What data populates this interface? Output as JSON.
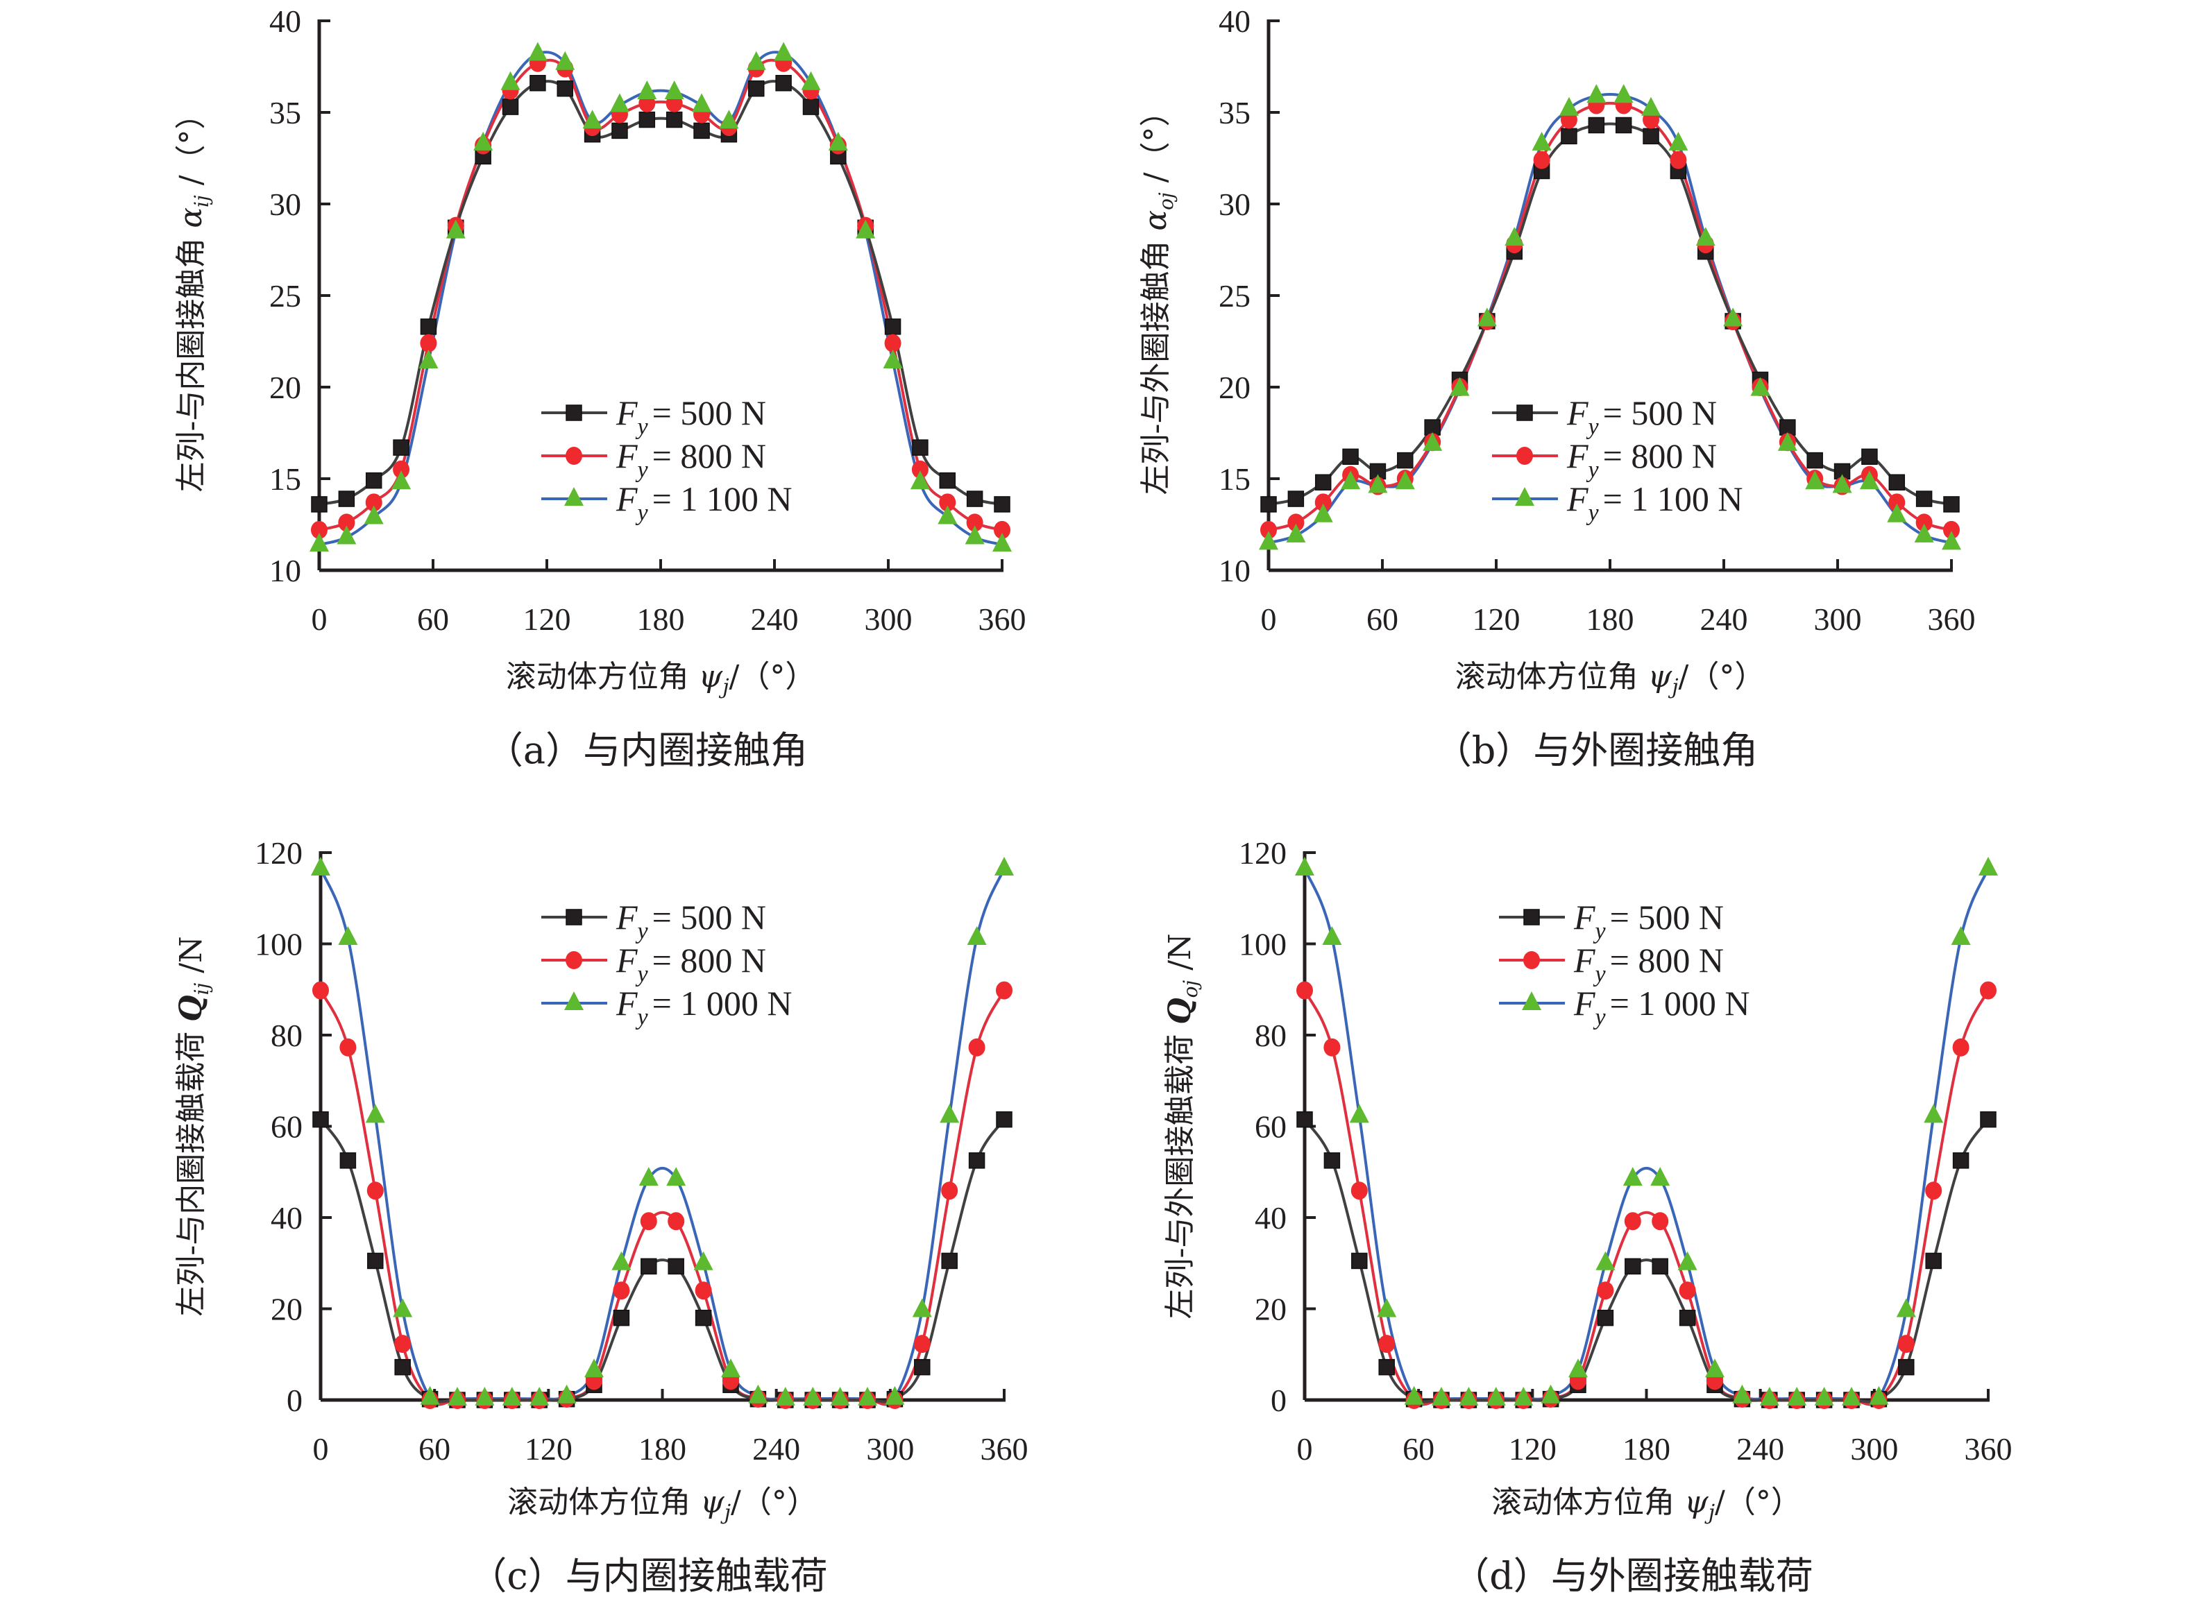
{
  "figure": {
    "panels": [
      "a",
      "b",
      "c",
      "d"
    ]
  },
  "chart_data": [
    {
      "id": "a",
      "type": "line",
      "caption": "（a）与内圈接触角",
      "xlabel_prefix": "滚动体方位角 ",
      "xlabel_symbol": "ψ",
      "xlabel_sub": "j",
      "xlabel_suffix": "/（°）",
      "ylabel_prefix": "左列-与内圈接触角 ",
      "ylabel_symbol": "α",
      "ylabel_sub": "ij",
      "ylabel_suffix": " /（°）",
      "xlim": [
        0,
        360
      ],
      "ylim": [
        10,
        40
      ],
      "xticks": [
        0,
        60,
        120,
        180,
        240,
        300,
        360
      ],
      "yticks": [
        10,
        15,
        20,
        25,
        30,
        35,
        40
      ],
      "grid": false,
      "legend_position": "lower-center",
      "x": [
        0,
        14.4,
        28.8,
        43.2,
        57.6,
        72,
        86.4,
        100.8,
        115.2,
        129.6,
        144,
        158.4,
        172.8,
        187.2,
        201.6,
        216,
        230.4,
        244.8,
        259.2,
        273.6,
        288,
        302.4,
        316.8,
        331.2,
        345.6,
        360
      ],
      "series": [
        {
          "name": "F_y = 500 N",
          "legend_value": "= 500 N",
          "color": "#404040",
          "marker": "square",
          "marker_color": "#231f20",
          "values": [
            13.6,
            13.9,
            14.9,
            16.7,
            23.3,
            28.7,
            32.6,
            35.3,
            36.6,
            36.3,
            33.8,
            34.0,
            34.6,
            34.6,
            34.0,
            33.8,
            36.3,
            36.6,
            35.3,
            32.6,
            28.7,
            23.3,
            16.7,
            14.9,
            13.9,
            13.6
          ]
        },
        {
          "name": "F_y = 800 N",
          "legend_value": "= 800 N",
          "color": "#e03040",
          "marker": "circle",
          "marker_color": "#ee2a2f",
          "values": [
            12.2,
            12.6,
            13.7,
            15.5,
            22.4,
            28.8,
            33.2,
            36.2,
            37.7,
            37.4,
            34.2,
            34.9,
            35.5,
            35.5,
            34.9,
            34.2,
            37.4,
            37.7,
            36.2,
            33.2,
            28.8,
            22.4,
            15.5,
            13.7,
            12.6,
            12.2
          ]
        },
        {
          "name": "F_y = 1 100 N",
          "legend_value": "= 1 100 N",
          "color": "#3a66b8",
          "marker": "triangle",
          "marker_color": "#5dba2f",
          "values": [
            11.4,
            11.8,
            12.9,
            14.8,
            21.4,
            28.5,
            33.3,
            36.6,
            38.2,
            37.7,
            34.5,
            35.4,
            36.1,
            36.1,
            35.4,
            34.5,
            37.7,
            38.2,
            36.6,
            33.3,
            28.5,
            21.4,
            14.8,
            12.9,
            11.8,
            11.4
          ]
        }
      ]
    },
    {
      "id": "b",
      "type": "line",
      "caption": "（b）与外圈接触角",
      "xlabel_prefix": "滚动体方位角 ",
      "xlabel_symbol": "ψ",
      "xlabel_sub": "j",
      "xlabel_suffix": "/（°）",
      "ylabel_prefix": "左列-与外圈接触角 ",
      "ylabel_symbol": "α",
      "ylabel_sub": "oj",
      "ylabel_suffix": " /（°）",
      "xlim": [
        0,
        360
      ],
      "ylim": [
        10,
        40
      ],
      "xticks": [
        0,
        60,
        120,
        180,
        240,
        300,
        360
      ],
      "yticks": [
        10,
        15,
        20,
        25,
        30,
        35,
        40
      ],
      "grid": false,
      "legend_position": "lower-center",
      "x": [
        0,
        14.4,
        28.8,
        43.2,
        57.6,
        72,
        86.4,
        100.8,
        115.2,
        129.6,
        144,
        158.4,
        172.8,
        187.2,
        201.6,
        216,
        230.4,
        244.8,
        259.2,
        273.6,
        288,
        302.4,
        316.8,
        331.2,
        345.6,
        360
      ],
      "series": [
        {
          "name": "F_y = 500 N",
          "legend_value": "= 500 N",
          "color": "#404040",
          "marker": "square",
          "marker_color": "#231f20",
          "values": [
            13.6,
            13.9,
            14.8,
            16.2,
            15.4,
            16.0,
            17.8,
            20.4,
            23.6,
            27.4,
            31.8,
            33.7,
            34.3,
            34.3,
            33.7,
            31.8,
            27.4,
            23.6,
            20.4,
            17.8,
            16.0,
            15.4,
            16.2,
            14.8,
            13.9,
            13.6
          ]
        },
        {
          "name": "F_y = 800 N",
          "legend_value": "= 800 N",
          "color": "#e03040",
          "marker": "circle",
          "marker_color": "#ee2a2f",
          "values": [
            12.2,
            12.6,
            13.7,
            15.2,
            14.6,
            15.0,
            17.0,
            20.0,
            23.6,
            27.8,
            32.4,
            34.6,
            35.4,
            35.4,
            34.6,
            32.4,
            27.8,
            23.6,
            20.0,
            17.0,
            15.0,
            14.6,
            15.2,
            13.7,
            12.6,
            12.2
          ]
        },
        {
          "name": "F_y = 1 100 N",
          "legend_value": "= 1 100 N",
          "color": "#3a66b8",
          "marker": "triangle",
          "marker_color": "#5dba2f",
          "values": [
            11.5,
            11.9,
            13.0,
            14.8,
            14.6,
            14.8,
            16.9,
            19.9,
            23.7,
            28.1,
            33.3,
            35.2,
            35.9,
            35.9,
            35.2,
            33.3,
            28.1,
            23.7,
            19.9,
            16.9,
            14.8,
            14.6,
            14.8,
            13.0,
            11.9,
            11.5
          ]
        }
      ]
    },
    {
      "id": "c",
      "type": "line",
      "caption": "（c）与内圈接触载荷",
      "xlabel_prefix": "滚动体方位角 ",
      "xlabel_symbol": "ψ",
      "xlabel_sub": "j",
      "xlabel_suffix": "/（°）",
      "ylabel_prefix": "左列-与内圈接触载荷 ",
      "ylabel_symbol": "Q",
      "ylabel_sub": "ij",
      "ylabel_suffix": " /N",
      "xlim": [
        0,
        360
      ],
      "ylim": [
        0,
        120
      ],
      "xticks": [
        0,
        60,
        120,
        180,
        240,
        300,
        360
      ],
      "yticks": [
        0,
        20,
        40,
        60,
        80,
        100,
        120
      ],
      "grid": false,
      "legend_position": "top-center",
      "x": [
        0,
        14.4,
        28.8,
        43.2,
        57.6,
        72,
        86.4,
        100.8,
        115.2,
        129.6,
        144,
        158.4,
        172.8,
        187.2,
        201.6,
        216,
        230.4,
        244.8,
        259.2,
        273.6,
        288,
        302.4,
        316.8,
        331.2,
        345.6,
        360
      ],
      "series": [
        {
          "name": "F_y = 500 N",
          "legend_value": "= 500 N",
          "color": "#404040",
          "marker": "square",
          "marker_color": "#231f20",
          "values": [
            61.5,
            52.5,
            30.5,
            7.2,
            0.2,
            0,
            0,
            0,
            0,
            0.2,
            3.3,
            18.0,
            29.3,
            29.3,
            18.0,
            3.3,
            0.2,
            0,
            0,
            0,
            0,
            0.2,
            7.2,
            30.5,
            52.5,
            61.5
          ]
        },
        {
          "name": "F_y = 800 N",
          "legend_value": "= 800 N",
          "color": "#e03040",
          "marker": "circle",
          "marker_color": "#ee2a2f",
          "values": [
            89.8,
            77.3,
            45.9,
            12.3,
            0,
            0,
            0,
            0,
            0,
            0.3,
            4.2,
            24.0,
            39.2,
            39.2,
            24.0,
            4.2,
            0.3,
            0,
            0,
            0,
            0,
            0,
            12.3,
            45.9,
            77.3,
            89.8
          ]
        },
        {
          "name": "F_y = 1 000 N",
          "legend_value": "= 1 000 N",
          "color": "#3a66b8",
          "marker": "triangle",
          "marker_color": "#5dba2f",
          "values": [
            116.5,
            101.3,
            62.3,
            19.7,
            0.5,
            0.3,
            0.3,
            0.3,
            0.3,
            0.8,
            6.5,
            30.0,
            48.5,
            48.5,
            30.0,
            6.5,
            0.8,
            0.3,
            0.3,
            0.3,
            0.3,
            0.5,
            19.7,
            62.3,
            101.3,
            116.5
          ]
        }
      ]
    },
    {
      "id": "d",
      "type": "line",
      "caption": "（d）与外圈接触载荷",
      "xlabel_prefix": "滚动体方位角 ",
      "xlabel_symbol": "ψ",
      "xlabel_sub": "j",
      "xlabel_suffix": "/（°）",
      "ylabel_prefix": "左列-与外圈接触载荷 ",
      "ylabel_symbol": "Q",
      "ylabel_sub": "oj",
      "ylabel_suffix": " /N",
      "xlim": [
        0,
        360
      ],
      "ylim": [
        0,
        120
      ],
      "xticks": [
        0,
        60,
        120,
        180,
        240,
        300,
        360
      ],
      "yticks": [
        0,
        20,
        40,
        60,
        80,
        100,
        120
      ],
      "grid": false,
      "legend_position": "top-center",
      "x": [
        0,
        14.4,
        28.8,
        43.2,
        57.6,
        72,
        86.4,
        100.8,
        115.2,
        129.6,
        144,
        158.4,
        172.8,
        187.2,
        201.6,
        216,
        230.4,
        244.8,
        259.2,
        273.6,
        288,
        302.4,
        316.8,
        331.2,
        345.6,
        360
      ],
      "series": [
        {
          "name": "F_y = 500 N",
          "legend_value": "= 500 N",
          "color": "#404040",
          "marker": "square",
          "marker_color": "#231f20",
          "values": [
            61.5,
            52.5,
            30.5,
            7.2,
            0.2,
            0,
            0,
            0,
            0,
            0.2,
            3.3,
            18.0,
            29.3,
            29.3,
            18.0,
            3.3,
            0.2,
            0,
            0,
            0,
            0,
            0.2,
            7.2,
            30.5,
            52.5,
            61.5
          ]
        },
        {
          "name": "F_y = 800 N",
          "legend_value": "= 800 N",
          "color": "#e03040",
          "marker": "circle",
          "marker_color": "#ee2a2f",
          "values": [
            89.8,
            77.3,
            45.9,
            12.3,
            0,
            0,
            0,
            0,
            0,
            0.3,
            4.2,
            24.0,
            39.2,
            39.2,
            24.0,
            4.2,
            0.3,
            0,
            0,
            0,
            0,
            0,
            12.3,
            45.9,
            77.3,
            89.8
          ]
        },
        {
          "name": "F_y = 1 000 N",
          "legend_value": "= 1 000 N",
          "color": "#3a66b8",
          "marker": "triangle",
          "marker_color": "#5dba2f",
          "values": [
            116.5,
            101.3,
            62.3,
            19.7,
            0.5,
            0.3,
            0.3,
            0.3,
            0.3,
            0.8,
            6.5,
            30.0,
            48.5,
            48.5,
            30.0,
            6.5,
            0.8,
            0.3,
            0.3,
            0.3,
            0.3,
            0.5,
            19.7,
            62.3,
            101.3,
            116.5
          ]
        }
      ]
    }
  ],
  "legend_symbol": "F",
  "legend_sub": "y"
}
